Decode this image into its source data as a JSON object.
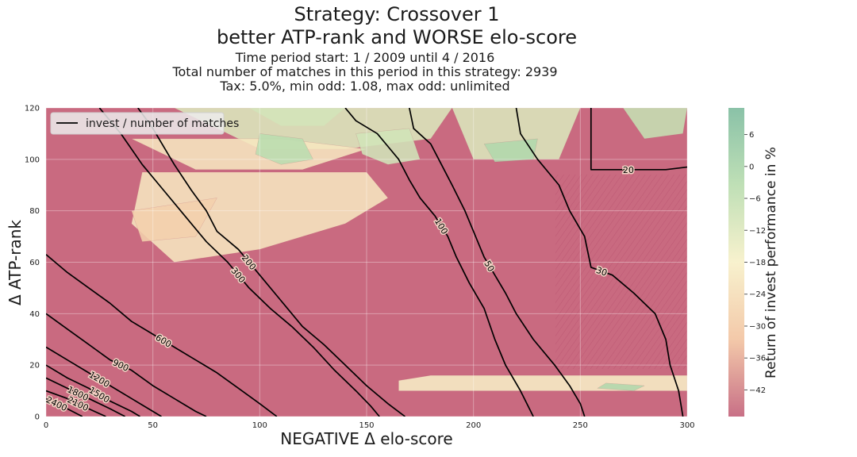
{
  "chart_data": {
    "type": "contour",
    "title_lines": [
      "Strategy: Crossover 1",
      "better ATP-rank and WORSE elo-score"
    ],
    "subtitle_lines": [
      "Time period start: 1 / 2009 until 4 / 2016",
      "Total number of matches in this period in this strategy: 2939",
      "Tax: 5.0%, min odd: 1.08, max odd: unlimited"
    ],
    "xlabel": "NEGATIVE Δ elo-score",
    "ylabel": "Δ ATP-rank",
    "xlim": [
      0,
      300
    ],
    "ylim": [
      0,
      120
    ],
    "xticks": [
      0,
      50,
      100,
      150,
      200,
      250,
      300
    ],
    "yticks": [
      0,
      20,
      40,
      60,
      80,
      100,
      120
    ],
    "colorbar": {
      "label": "Return of invest performance in %",
      "ticks": [
        6,
        0,
        -6,
        -12,
        -18,
        -24,
        -30,
        -36,
        -42
      ],
      "range": [
        -47,
        11
      ],
      "colors": [
        "#c26079",
        "#f2c3a0",
        "#f7f0c8",
        "#b8dcae",
        "#7dbb9e"
      ]
    },
    "legend": {
      "entries": [
        "invest / number of matches"
      ],
      "position": "upper-left"
    },
    "contour_lines": [
      {
        "label": "20",
        "points": [
          [
            255,
            120
          ],
          [
            255,
            96
          ],
          [
            290,
            96
          ],
          [
            300,
            97
          ]
        ]
      },
      {
        "label": "30",
        "points": [
          [
            220,
            120
          ],
          [
            222,
            110
          ],
          [
            230,
            100
          ],
          [
            240,
            90
          ],
          [
            245,
            80
          ],
          [
            252,
            70
          ],
          [
            255,
            58
          ],
          [
            265,
            55
          ],
          [
            275,
            48
          ],
          [
            285,
            40
          ],
          [
            290,
            30
          ],
          [
            292,
            20
          ],
          [
            296,
            10
          ],
          [
            298,
            0
          ]
        ]
      },
      {
        "label": "50",
        "points": [
          [
            170,
            120
          ],
          [
            172,
            112
          ],
          [
            180,
            106
          ],
          [
            185,
            98
          ],
          [
            190,
            90
          ],
          [
            196,
            80
          ],
          [
            200,
            72
          ],
          [
            205,
            62
          ],
          [
            210,
            55
          ],
          [
            215,
            48
          ],
          [
            220,
            40
          ],
          [
            228,
            30
          ],
          [
            238,
            20
          ],
          [
            245,
            12
          ],
          [
            250,
            5
          ],
          [
            252,
            0
          ]
        ]
      },
      {
        "label": "100",
        "points": [
          [
            140,
            120
          ],
          [
            145,
            115
          ],
          [
            155,
            110
          ],
          [
            160,
            105
          ],
          [
            165,
            100
          ],
          [
            170,
            92
          ],
          [
            175,
            85
          ],
          [
            182,
            78
          ],
          [
            188,
            70
          ],
          [
            192,
            62
          ],
          [
            198,
            52
          ],
          [
            205,
            42
          ],
          [
            210,
            30
          ],
          [
            215,
            20
          ],
          [
            222,
            10
          ],
          [
            228,
            0
          ]
        ]
      },
      {
        "label": "200",
        "points": [
          [
            43,
            120
          ],
          [
            50,
            112
          ],
          [
            60,
            98
          ],
          [
            68,
            88
          ],
          [
            75,
            80
          ],
          [
            80,
            72
          ],
          [
            90,
            65
          ],
          [
            100,
            55
          ],
          [
            110,
            45
          ],
          [
            120,
            35
          ],
          [
            130,
            28
          ],
          [
            140,
            20
          ],
          [
            150,
            12
          ],
          [
            160,
            5
          ],
          [
            168,
            0
          ]
        ]
      },
      {
        "label": "300",
        "points": [
          [
            25,
            120
          ],
          [
            35,
            110
          ],
          [
            45,
            98
          ],
          [
            55,
            88
          ],
          [
            65,
            78
          ],
          [
            75,
            68
          ],
          [
            85,
            60
          ],
          [
            95,
            50
          ],
          [
            105,
            42
          ],
          [
            115,
            35
          ],
          [
            125,
            27
          ],
          [
            135,
            18
          ],
          [
            145,
            10
          ],
          [
            152,
            4
          ],
          [
            156,
            0
          ]
        ]
      },
      {
        "label": "600",
        "points": [
          [
            0,
            63
          ],
          [
            10,
            56
          ],
          [
            20,
            50
          ],
          [
            30,
            44
          ],
          [
            40,
            37
          ],
          [
            50,
            32
          ],
          [
            60,
            27
          ],
          [
            70,
            22
          ],
          [
            80,
            17
          ],
          [
            90,
            11
          ],
          [
            100,
            5
          ],
          [
            108,
            0
          ]
        ]
      },
      {
        "label": "900",
        "points": [
          [
            0,
            40
          ],
          [
            10,
            34
          ],
          [
            20,
            28
          ],
          [
            30,
            22
          ],
          [
            40,
            18
          ],
          [
            50,
            12
          ],
          [
            60,
            7
          ],
          [
            70,
            2
          ],
          [
            75,
            0
          ]
        ]
      },
      {
        "label": "1200",
        "points": [
          [
            0,
            27
          ],
          [
            10,
            22
          ],
          [
            20,
            17
          ],
          [
            30,
            12
          ],
          [
            40,
            7
          ],
          [
            50,
            2
          ],
          [
            54,
            0
          ]
        ]
      },
      {
        "label": "1500",
        "points": [
          [
            0,
            20
          ],
          [
            10,
            15
          ],
          [
            20,
            11
          ],
          [
            30,
            6
          ],
          [
            40,
            2
          ],
          [
            44,
            0
          ]
        ]
      },
      {
        "label": "1800",
        "points": [
          [
            0,
            15
          ],
          [
            10,
            11
          ],
          [
            20,
            7
          ],
          [
            30,
            3
          ],
          [
            37,
            0
          ]
        ]
      },
      {
        "label": "2100",
        "points": [
          [
            0,
            10
          ],
          [
            10,
            7
          ],
          [
            20,
            3
          ],
          [
            28,
            0
          ]
        ]
      },
      {
        "label": "2400",
        "points": [
          [
            0,
            7
          ],
          [
            10,
            3
          ],
          [
            17,
            0
          ]
        ]
      }
    ],
    "performance_regions": [
      {
        "value": 8,
        "points": [
          [
            95,
            120
          ],
          [
            140,
            120
          ],
          [
            130,
            113
          ],
          [
            110,
            113
          ]
        ]
      },
      {
        "value": 2,
        "points": [
          [
            60,
            120
          ],
          [
            190,
            120
          ],
          [
            180,
            108
          ],
          [
            140,
            104
          ],
          [
            100,
            104
          ]
        ]
      },
      {
        "value": -3,
        "points": [
          [
            40,
            108
          ],
          [
            110,
            108
          ],
          [
            150,
            104
          ],
          [
            120,
            96
          ],
          [
            70,
            96
          ]
        ]
      },
      {
        "value": 5,
        "points": [
          [
            100,
            110
          ],
          [
            120,
            108
          ],
          [
            125,
            100
          ],
          [
            110,
            98
          ],
          [
            98,
            102
          ]
        ]
      },
      {
        "value": 3,
        "points": [
          [
            145,
            110
          ],
          [
            170,
            112
          ],
          [
            175,
            100
          ],
          [
            160,
            98
          ],
          [
            148,
            102
          ]
        ]
      },
      {
        "value": 2,
        "points": [
          [
            190,
            120
          ],
          [
            250,
            120
          ],
          [
            240,
            100
          ],
          [
            200,
            100
          ],
          [
            195,
            110
          ]
        ]
      },
      {
        "value": 6,
        "points": [
          [
            205,
            106
          ],
          [
            230,
            108
          ],
          [
            228,
            100
          ],
          [
            210,
            99
          ]
        ]
      },
      {
        "value": 4,
        "points": [
          [
            270,
            120
          ],
          [
            300,
            120
          ],
          [
            298,
            110
          ],
          [
            280,
            108
          ]
        ]
      },
      {
        "value": -3,
        "points": [
          [
            45,
            95
          ],
          [
            150,
            95
          ],
          [
            160,
            85
          ],
          [
            140,
            75
          ],
          [
            100,
            65
          ],
          [
            60,
            60
          ],
          [
            40,
            75
          ]
        ]
      },
      {
        "value": -8,
        "points": [
          [
            40,
            80
          ],
          [
            80,
            85
          ],
          [
            70,
            70
          ],
          [
            45,
            68
          ]
        ]
      },
      {
        "value": -1,
        "points": [
          [
            165,
            10
          ],
          [
            300,
            10
          ],
          [
            300,
            16
          ],
          [
            180,
            16
          ],
          [
            165,
            14
          ]
        ]
      },
      {
        "value": 6,
        "points": [
          [
            258,
            11
          ],
          [
            275,
            10
          ],
          [
            280,
            12
          ],
          [
            262,
            13
          ]
        ]
      }
    ],
    "grid": true
  }
}
